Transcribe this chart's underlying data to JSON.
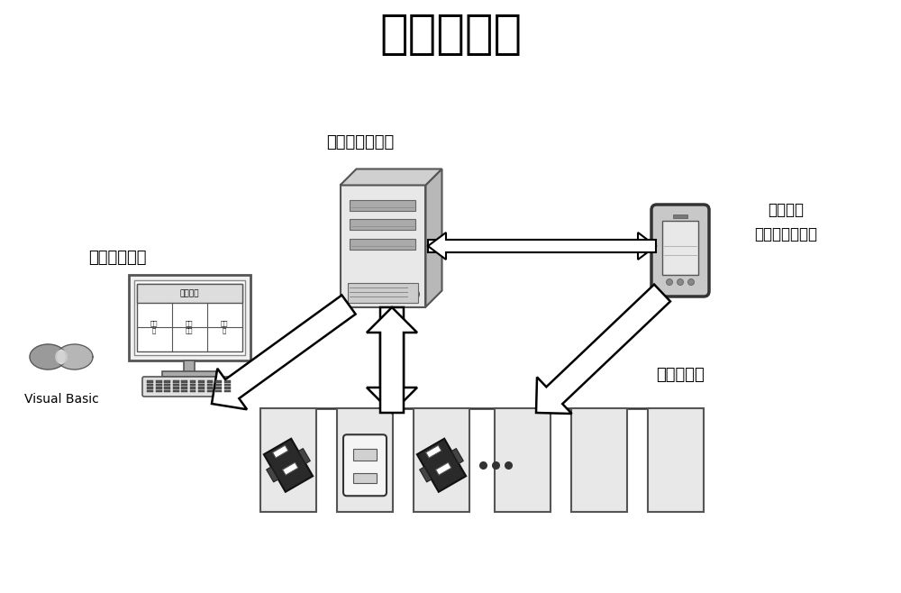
{
  "title": "系统结构图",
  "title_fontsize": 38,
  "bg_color": "#ffffff",
  "label_server": "服务器及数据库",
  "label_mobile_1": "移动终端",
  "label_mobile_2": "（微信小程序）",
  "label_backend": "后台管理中心",
  "label_charging": "充电桦车位",
  "label_vb": "Visual Basic",
  "table_title": "车位管理",
  "col1": "车位\n号",
  "col2": "预约\n时间",
  "col3": "利用\n率",
  "figsize": [
    10.0,
    6.58
  ],
  "dpi": 100
}
